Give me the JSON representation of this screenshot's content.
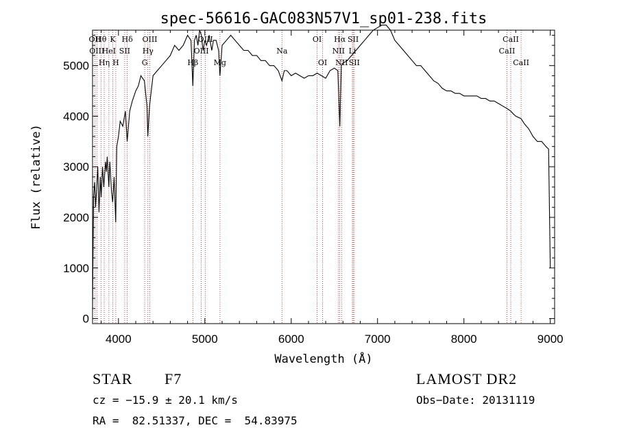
{
  "chart_data": {
    "type": "line",
    "title": "spec-56616-GAC083N57V1_sp01-238.fits",
    "xlabel": "Wavelength (Å)",
    "ylabel": "Flux (relative)",
    "xlim": [
      3700,
      9050
    ],
    "ylim": [
      -100,
      5700
    ],
    "x_ticks": [
      4000,
      5000,
      6000,
      7000,
      8000,
      9000
    ],
    "y_ticks": [
      0,
      1000,
      2000,
      3000,
      4000,
      5000
    ],
    "x_tick_labels": [
      "4000",
      "5000",
      "6000",
      "7000",
      "8000",
      "9000"
    ],
    "y_tick_labels": [
      "0",
      "1000",
      "2000",
      "3000",
      "4000",
      "5000"
    ],
    "series": [
      {
        "x": [
          3700,
          3712,
          3725,
          3735,
          3745,
          3760,
          3775,
          3790,
          3800,
          3815,
          3830,
          3850,
          3860,
          3870,
          3889,
          3900,
          3920,
          3933,
          3950,
          3968,
          3980,
          4000,
          4020,
          4050,
          4080,
          4101,
          4130,
          4160,
          4200,
          4230,
          4260,
          4300,
          4330,
          4340,
          4360,
          4400,
          4450,
          4500,
          4550,
          4600,
          4650,
          4700,
          4750,
          4800,
          4840,
          4861,
          4880,
          4900,
          4920,
          4940,
          4960,
          4980,
          5000,
          5020,
          5050,
          5080,
          5100,
          5130,
          5160,
          5175,
          5200,
          5250,
          5300,
          5350,
          5400,
          5450,
          5500,
          5550,
          5600,
          5650,
          5700,
          5750,
          5800,
          5850,
          5893,
          5920,
          5950,
          6000,
          6050,
          6100,
          6150,
          6200,
          6250,
          6300,
          6350,
          6400,
          6450,
          6500,
          6540,
          6563,
          6580,
          6600,
          6650,
          6700,
          6750,
          6800,
          6850,
          6900,
          6950,
          7000,
          7050,
          7100,
          7150,
          7200,
          7250,
          7300,
          7350,
          7400,
          7450,
          7500,
          7550,
          7600,
          7650,
          7700,
          7750,
          7800,
          7850,
          7900,
          7950,
          8000,
          8050,
          8100,
          8150,
          8200,
          8250,
          8300,
          8350,
          8400,
          8450,
          8500,
          8542,
          8570,
          8600,
          8662,
          8700,
          8750,
          8800,
          8850,
          8900,
          8950,
          8980,
          9000
        ],
        "y": [
          200,
          2400,
          2700,
          2200,
          2500,
          3000,
          2100,
          2800,
          2400,
          3000,
          2600,
          3100,
          2900,
          3200,
          2600,
          3100,
          2500,
          2300,
          2800,
          1900,
          3400,
          3600,
          3900,
          3800,
          4100,
          3500,
          4100,
          4300,
          4500,
          4600,
          4800,
          4700,
          4200,
          3600,
          4200,
          4800,
          4900,
          5000,
          5100,
          5200,
          5400,
          5300,
          5400,
          5600,
          5500,
          4600,
          5500,
          5600,
          5400,
          5700,
          5600,
          5300,
          5500,
          5400,
          5600,
          5300,
          5500,
          5500,
          5300,
          4800,
          5400,
          5500,
          5600,
          5500,
          5400,
          5300,
          5300,
          5200,
          5200,
          5100,
          5100,
          5000,
          5000,
          4900,
          4700,
          4900,
          4900,
          4800,
          4850,
          4800,
          4750,
          4800,
          4800,
          4850,
          4800,
          4750,
          4900,
          4950,
          4900,
          3800,
          5000,
          5050,
          5100,
          5200,
          5300,
          5400,
          5500,
          5600,
          5700,
          5750,
          5800,
          5800,
          5700,
          5500,
          5400,
          5300,
          5200,
          5100,
          5000,
          5000,
          4900,
          4800,
          4700,
          4650,
          4550,
          4500,
          4500,
          4450,
          4450,
          4400,
          4400,
          4400,
          4400,
          4350,
          4350,
          4300,
          4300,
          4250,
          4200,
          4150,
          4100,
          4050,
          4000,
          3950,
          3850,
          3750,
          3600,
          3500,
          3500,
          3400,
          3350,
          1000
        ]
      }
    ],
    "line_labels": [
      {
        "text": "Hθ",
        "x": 3798
      },
      {
        "text": "K",
        "x": 3934
      },
      {
        "text": "Hδ",
        "x": 4102
      },
      {
        "text": "OIII",
        "x": 4363
      },
      {
        "text": "OIII",
        "x": 5007
      },
      {
        "text": "OI",
        "x": 6300
      },
      {
        "text": "Hα",
        "x": 6563
      },
      {
        "text": "SII",
        "x": 6717
      },
      {
        "text": "CaII",
        "x": 8542
      },
      {
        "text": "OII",
        "x": 3727
      },
      {
        "text": "HeI",
        "x": 3889
      },
      {
        "text": "SII",
        "x": 4072
      },
      {
        "text": "Hγ",
        "x": 4341
      },
      {
        "text": "OIII",
        "x": 4959
      },
      {
        "text": "Na",
        "x": 5893
      },
      {
        "text": "NII",
        "x": 6548
      },
      {
        "text": "Li",
        "x": 6708
      },
      {
        "text": "CaII",
        "x": 8498
      },
      {
        "text": "OIII",
        "x": 3750
      },
      {
        "text": "Hη",
        "x": 3835
      },
      {
        "text": "H",
        "x": 3969
      },
      {
        "text": "G",
        "x": 4304
      },
      {
        "text": "Hβ",
        "x": 4861
      },
      {
        "text": "Mg",
        "x": 5175
      },
      {
        "text": "OI",
        "x": 6364
      },
      {
        "text": "NII",
        "x": 6584
      },
      {
        "text": "SII",
        "x": 6731
      },
      {
        "text": "CaII",
        "x": 8662
      }
    ],
    "marker_lines_x": [
      3727,
      3750,
      3798,
      3835,
      3889,
      3934,
      3969,
      4072,
      4102,
      4304,
      4341,
      4363,
      4861,
      4959,
      5007,
      5175,
      5893,
      6300,
      6364,
      6548,
      6563,
      6584,
      6708,
      6717,
      6731,
      8498,
      8542,
      8662
    ],
    "colors": {
      "spectrum": "#000000",
      "marker_lines": "#aa2222",
      "axes": "#000000"
    }
  },
  "info": {
    "class": "STAR",
    "subclass": "F7",
    "survey": "LAMOST DR2",
    "cz": "cz = −15.9 ± 20.1 km/s",
    "obs_date": "Obs−Date: 20131119",
    "radec": "RA =  82.51337, DEC =  54.83975"
  }
}
